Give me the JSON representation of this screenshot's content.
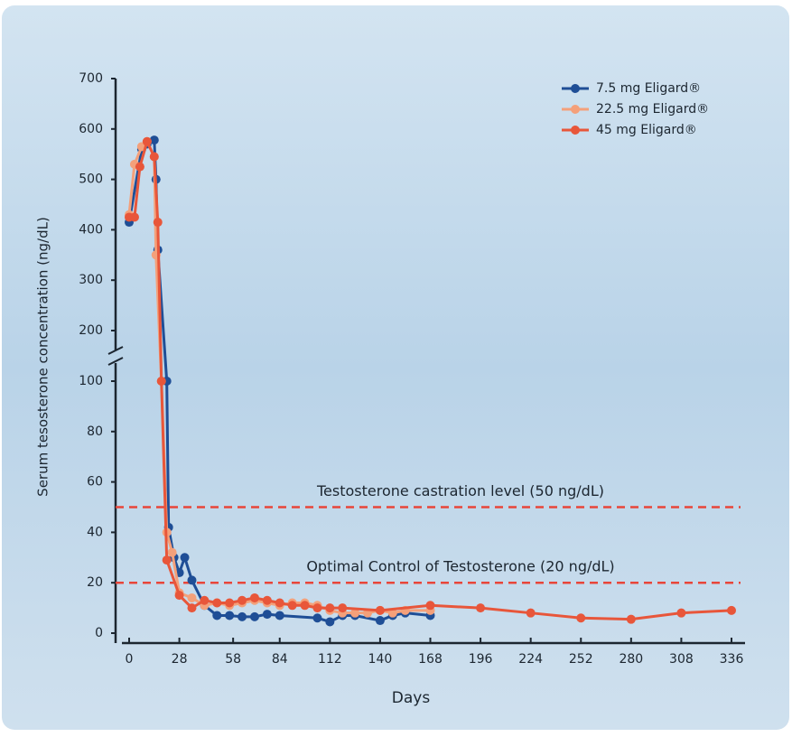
{
  "chart_data": {
    "type": "line",
    "y_label": "Serum tesosterone concentration (ng/dL)",
    "x_label": "Days",
    "xlim": [
      0,
      336
    ],
    "xticks": [
      0,
      28,
      58,
      84,
      112,
      140,
      168,
      196,
      224,
      252,
      280,
      308,
      336
    ],
    "ylim": [
      0,
      700
    ],
    "ybreak": [
      100,
      200
    ],
    "yticks": [
      0,
      20,
      40,
      60,
      80,
      100,
      200,
      300,
      400,
      500,
      600,
      700
    ],
    "reference_lines": [
      {
        "label": "Testosterone castration level (50 ng/dL)",
        "value": 50,
        "color": "#e8463a"
      },
      {
        "label": "Optimal Control of Testosterone (20 ng/dL)",
        "value": 20,
        "color": "#e8463a"
      }
    ],
    "series": [
      {
        "name": "7.5 mg Eligard®",
        "color": "#1f4e96",
        "x": [
          0,
          7,
          10,
          14,
          15,
          16,
          21,
          22,
          25,
          28,
          31,
          35,
          42,
          49,
          56,
          63,
          70,
          77,
          84,
          105,
          112,
          119,
          126,
          140,
          147,
          154,
          168
        ],
        "values": [
          415,
          560,
          570,
          578,
          500,
          360,
          100,
          42,
          30,
          24,
          30,
          21,
          11,
          7,
          7,
          6.5,
          6.5,
          7.5,
          7,
          6,
          4.5,
          7,
          7,
          5,
          7,
          8,
          7
        ]
      },
      {
        "name": "22.5 mg Eligard®",
        "color": "#f4a07a",
        "x": [
          0,
          3,
          7,
          10,
          14,
          15,
          18,
          21,
          24,
          28,
          35,
          42,
          49,
          56,
          63,
          70,
          77,
          84,
          91,
          98,
          105,
          112,
          119,
          126,
          133,
          140,
          147,
          154,
          168
        ],
        "values": [
          430,
          530,
          565,
          575,
          545,
          350,
          100,
          40,
          32,
          16,
          14,
          11,
          12,
          11,
          12,
          13,
          12,
          11,
          12,
          12,
          11,
          9,
          8,
          8,
          8,
          9,
          8,
          9,
          9
        ]
      },
      {
        "name": "45 mg Eligard®",
        "color": "#e8563a",
        "x": [
          0,
          3,
          6,
          10,
          14,
          16,
          18,
          21,
          28,
          35,
          42,
          49,
          56,
          63,
          70,
          77,
          84,
          91,
          98,
          105,
          112,
          119,
          140,
          168,
          196,
          224,
          252,
          280,
          308,
          336
        ],
        "values": [
          425,
          425,
          525,
          575,
          545,
          415,
          100,
          29,
          15,
          10,
          13,
          12,
          12,
          13,
          14,
          13,
          12,
          11,
          11,
          10,
          10,
          10,
          9,
          11,
          10,
          8,
          6,
          5.5,
          8,
          9
        ]
      }
    ]
  }
}
